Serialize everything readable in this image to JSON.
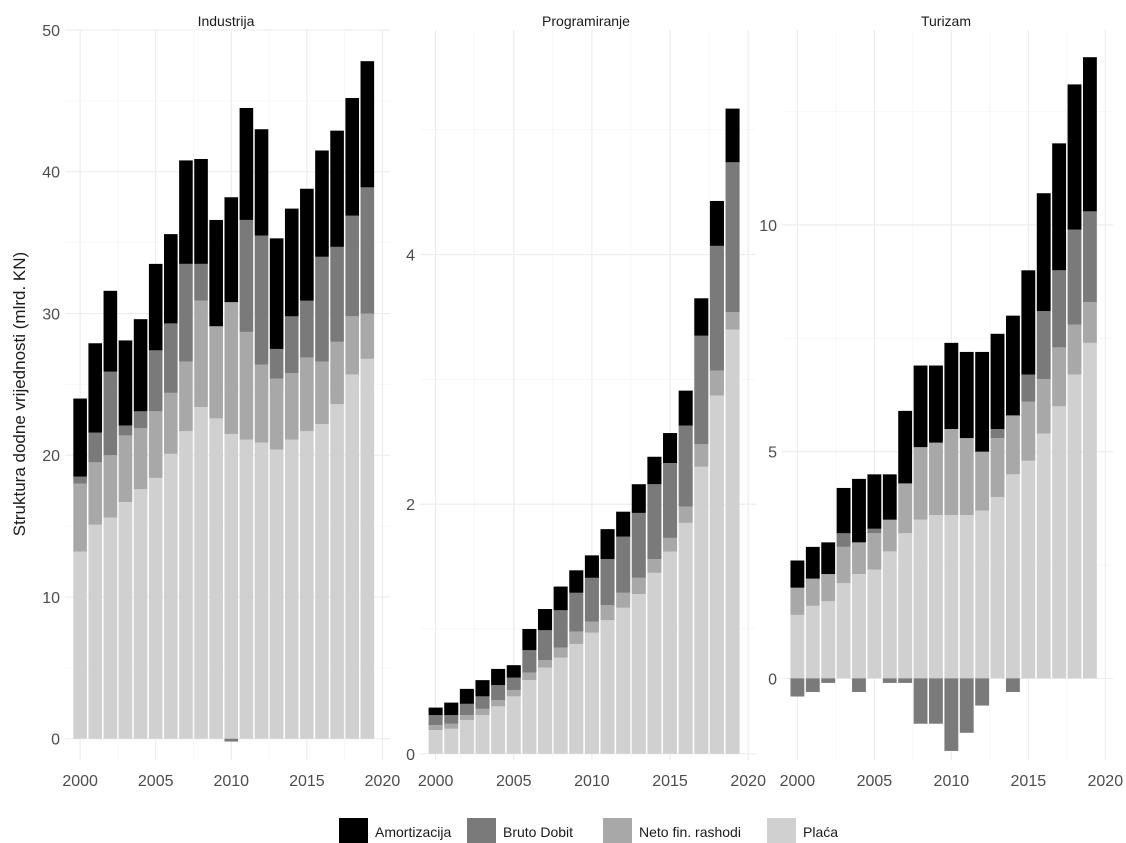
{
  "chart_data": {
    "type": "bar",
    "stacked": true,
    "ylabel": "Struktura dodne vrijednosti (mlrd. KN)",
    "xlabel": "",
    "legend": {
      "position": "bottom",
      "items": [
        {
          "name": "Amortizacija",
          "color": "#000000"
        },
        {
          "name": "Bruto Dobit",
          "color": "#7a7a7a"
        },
        {
          "name": "Neto fin. rashodi",
          "color": "#a8a8a8"
        },
        {
          "name": "Plaća",
          "color": "#d0d0d0"
        }
      ]
    },
    "x": [
      2000,
      2001,
      2002,
      2003,
      2004,
      2005,
      2006,
      2007,
      2008,
      2009,
      2010,
      2011,
      2012,
      2013,
      2014,
      2015,
      2016,
      2017,
      2018,
      2019
    ],
    "x_ticks": [
      "2000",
      "2005",
      "2010",
      "2015",
      "2020"
    ],
    "xlim": [
      1999,
      2020.5
    ],
    "panels": [
      {
        "title": "Industrija",
        "ylim": [
          -1.5,
          50
        ],
        "y_ticks": [
          "0",
          "10",
          "20",
          "30",
          "40",
          "50"
        ],
        "series": [
          {
            "name": "Plaća",
            "values": [
              13.2,
              15.1,
              15.6,
              16.7,
              17.6,
              18.4,
              20.1,
              21.7,
              23.4,
              22.6,
              21.5,
              21.1,
              20.9,
              20.4,
              21.1,
              21.7,
              22.2,
              23.6,
              25.7,
              26.8
            ]
          },
          {
            "name": "Neto fin. rashodi",
            "values": [
              4.8,
              4.4,
              4.4,
              4.7,
              4.3,
              4.7,
              4.3,
              4.9,
              7.5,
              6.5,
              9.3,
              7.6,
              5.5,
              5.0,
              4.7,
              5.2,
              4.4,
              4.4,
              4.1,
              3.2
            ]
          },
          {
            "name": "Bruto Dobit",
            "values": [
              0.5,
              2.1,
              5.9,
              0.7,
              1.2,
              4.3,
              4.9,
              6.9,
              2.6,
              0.0,
              -0.2,
              7.9,
              9.1,
              2.1,
              4.0,
              4.0,
              7.4,
              6.7,
              7.1,
              8.9
            ]
          },
          {
            "name": "Amortizacija",
            "values": [
              5.5,
              6.3,
              5.7,
              6.0,
              6.5,
              6.1,
              6.3,
              7.3,
              7.4,
              7.5,
              7.4,
              7.9,
              7.5,
              7.8,
              7.6,
              7.9,
              7.5,
              8.2,
              8.3,
              8.9
            ]
          }
        ]
      },
      {
        "title": "Programiranje",
        "ylim": [
          -0.05,
          5.8
        ],
        "y_ticks": [
          "0",
          "2",
          "4"
        ],
        "series": [
          {
            "name": "Plaća",
            "values": [
              0.19,
              0.2,
              0.27,
              0.31,
              0.38,
              0.46,
              0.59,
              0.69,
              0.77,
              0.88,
              0.97,
              1.07,
              1.17,
              1.28,
              1.45,
              1.62,
              1.85,
              2.3,
              2.87,
              3.4
            ]
          },
          {
            "name": "Neto fin. rashodi",
            "values": [
              0.04,
              0.04,
              0.04,
              0.05,
              0.05,
              0.05,
              0.06,
              0.06,
              0.08,
              0.1,
              0.09,
              0.12,
              0.12,
              0.13,
              0.11,
              0.11,
              0.13,
              0.18,
              0.2,
              0.14
            ]
          },
          {
            "name": "Bruto Dobit",
            "values": [
              0.08,
              0.07,
              0.09,
              0.1,
              0.12,
              0.1,
              0.18,
              0.24,
              0.3,
              0.31,
              0.35,
              0.37,
              0.45,
              0.52,
              0.6,
              0.6,
              0.65,
              0.87,
              1.0,
              1.2
            ]
          },
          {
            "name": "Amortizacija",
            "values": [
              0.06,
              0.1,
              0.12,
              0.13,
              0.13,
              0.1,
              0.17,
              0.17,
              0.19,
              0.18,
              0.18,
              0.24,
              0.2,
              0.23,
              0.22,
              0.24,
              0.28,
              0.3,
              0.36,
              0.43
            ]
          }
        ]
      },
      {
        "title": "Turizam",
        "ylim": [
          -1.8,
          14.3
        ],
        "y_ticks": [
          "0",
          "5",
          "10"
        ],
        "series": [
          {
            "name": "Plaća",
            "values": [
              1.4,
              1.6,
              1.7,
              2.1,
              2.3,
              2.4,
              2.8,
              3.2,
              3.5,
              3.6,
              3.6,
              3.6,
              3.7,
              4.0,
              4.5,
              4.8,
              5.4,
              6.0,
              6.7,
              7.4
            ]
          },
          {
            "name": "Neto fin. rashodi",
            "values": [
              0.6,
              0.6,
              0.6,
              0.8,
              0.7,
              0.8,
              0.7,
              1.1,
              1.6,
              1.6,
              1.9,
              1.7,
              1.3,
              1.3,
              1.3,
              1.3,
              1.2,
              1.3,
              1.1,
              0.9
            ]
          },
          {
            "name": "Bruto Dobit",
            "values": [
              -0.4,
              -0.3,
              -0.1,
              0.3,
              -0.3,
              0.1,
              -0.1,
              -0.1,
              -1.0,
              -1.0,
              -1.6,
              -1.2,
              -0.6,
              0.2,
              -0.3,
              0.6,
              1.5,
              1.7,
              2.1,
              2.0
            ]
          },
          {
            "name": "Amortizacija",
            "values": [
              0.6,
              0.7,
              0.7,
              1.0,
              1.4,
              1.2,
              1.0,
              1.6,
              1.8,
              1.7,
              1.9,
              1.9,
              2.2,
              2.1,
              2.2,
              2.3,
              2.6,
              2.8,
              3.2,
              3.4
            ]
          }
        ]
      }
    ]
  }
}
